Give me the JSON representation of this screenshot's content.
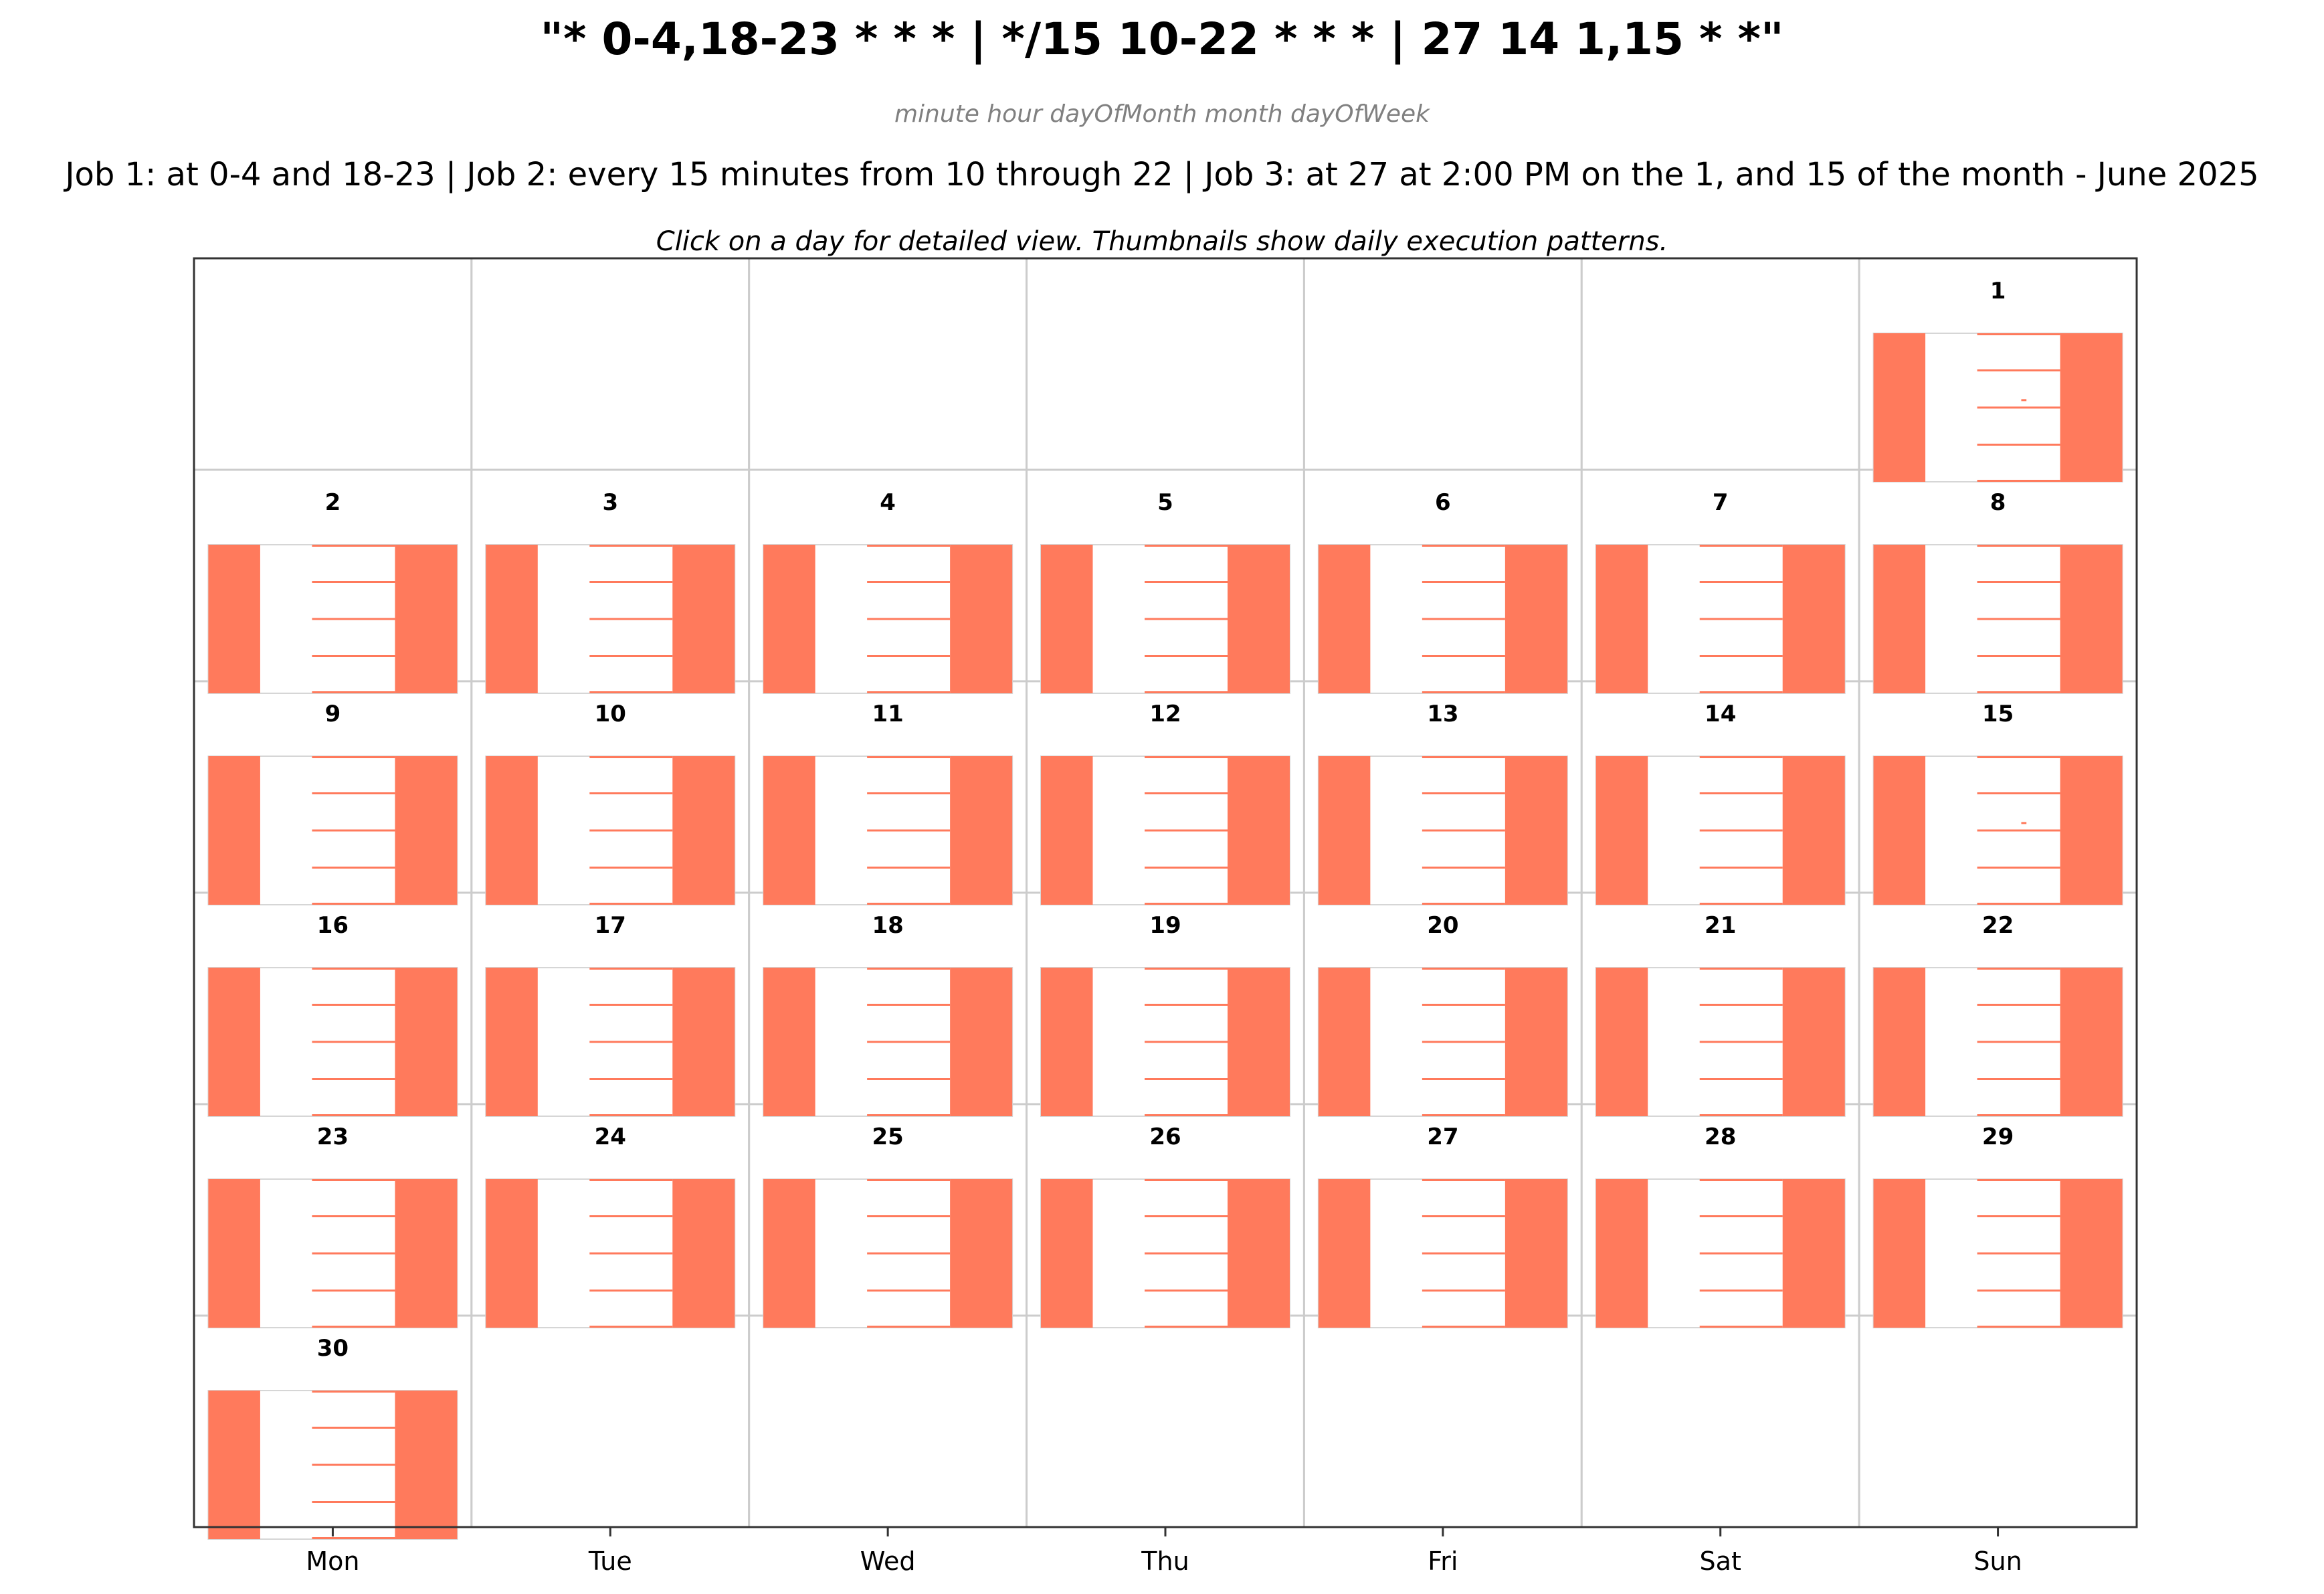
{
  "chart": {
    "title": "\"* 0-4,18-23 * * * | */15 10-22 * * * | 27 14 1,15 * *\"",
    "subtitle": "minute hour dayOfMonth month dayOfWeek",
    "description": "Job 1: at 0-4 and 18-23 | Job 2: every 15 minutes from 10 through 22 | Job 3: at 27 at 2:00 PM on the 1, and 15 of the month - June 2025",
    "instruction": "Click on a day for detailed view. Thumbnails show daily execution patterns."
  },
  "chart_data": {
    "type": "calendar-heatmap",
    "month": "June 2025",
    "weekdays": [
      "Mon",
      "Tue",
      "Wed",
      "Thu",
      "Fri",
      "Sat",
      "Sun"
    ],
    "first_weekday_index": 6,
    "days_in_month": 30,
    "jobs": [
      {
        "expression": "* 0-4,18-23 * * *",
        "hours": [
          0,
          1,
          2,
          3,
          4,
          18,
          19,
          20,
          21,
          22,
          23
        ],
        "minutes": "every minute",
        "days_of_month": "all"
      },
      {
        "expression": "*/15 10-22 * * *",
        "hours": [
          10,
          11,
          12,
          13,
          14,
          15,
          16,
          17,
          18,
          19,
          20,
          21,
          22
        ],
        "minutes": [
          0,
          15,
          30,
          45
        ],
        "days_of_month": "all"
      },
      {
        "expression": "27 14 1,15 * *",
        "hours": [
          14
        ],
        "minutes": [
          27
        ],
        "days_of_month": [
          1,
          15
        ]
      }
    ],
    "special_days": [
      1,
      15
    ],
    "colors": {
      "execution": "#ff7a5c",
      "cell_border": "#cccccc",
      "thumb_border": "#d6d6d6",
      "frame": "#333333"
    }
  }
}
